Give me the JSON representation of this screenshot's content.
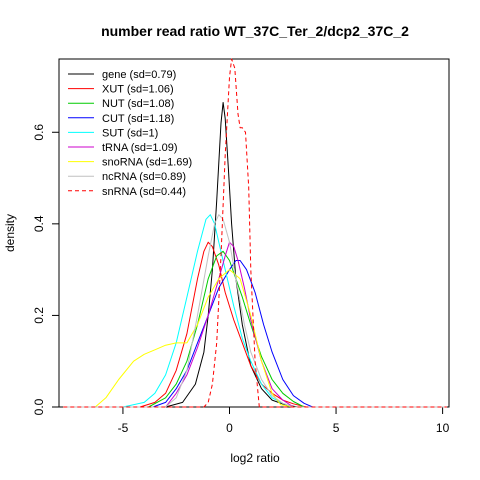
{
  "chart_data": {
    "type": "line",
    "title": "number read ratio WT_37C_Ter_2/dcp2_37C_2",
    "xlabel": "log2 ratio",
    "ylabel": "density",
    "xlim": [
      -8,
      10.3
    ],
    "ylim": [
      0,
      0.76
    ],
    "xticks": [
      -5,
      0,
      5,
      10
    ],
    "yticks": [
      0.0,
      0.2,
      0.4,
      0.6
    ],
    "grid": false,
    "legend_position": "top-left",
    "series": [
      {
        "name": "gene (sd=0.79)",
        "color": "#000000",
        "dash": "solid",
        "x": [
          -7.8,
          -3.0,
          -2.2,
          -1.6,
          -1.2,
          -1.0,
          -0.8,
          -0.6,
          -0.4,
          -0.3,
          -0.2,
          -0.05,
          0.1,
          0.3,
          0.6,
          1.0,
          1.5,
          2.0,
          2.6,
          3.2,
          10.2
        ],
        "y": [
          0,
          0,
          0.01,
          0.05,
          0.12,
          0.2,
          0.3,
          0.45,
          0.62,
          0.665,
          0.63,
          0.52,
          0.4,
          0.28,
          0.18,
          0.09,
          0.04,
          0.015,
          0.005,
          0,
          0
        ]
      },
      {
        "name": "XUT (sd=1.06)",
        "color": "#ff0000",
        "dash": "solid",
        "x": [
          -7.8,
          -4.2,
          -3.5,
          -3.0,
          -2.5,
          -2.0,
          -1.5,
          -1.2,
          -1.0,
          -0.8,
          -0.5,
          -0.2,
          0.2,
          0.6,
          1.0,
          1.5,
          2.0,
          2.5,
          3.0,
          3.6,
          10.2
        ],
        "y": [
          0,
          0,
          0.01,
          0.03,
          0.08,
          0.16,
          0.28,
          0.34,
          0.36,
          0.35,
          0.31,
          0.25,
          0.19,
          0.14,
          0.09,
          0.05,
          0.03,
          0.015,
          0.007,
          0,
          0
        ]
      },
      {
        "name": "NUT (sd=1.08)",
        "color": "#00cc00",
        "dash": "solid",
        "x": [
          -7.8,
          -3.8,
          -3.0,
          -2.5,
          -2.0,
          -1.5,
          -1.0,
          -0.6,
          -0.3,
          0.0,
          0.3,
          0.6,
          1.0,
          1.5,
          2.0,
          2.5,
          3.0,
          3.5,
          10.2
        ],
        "y": [
          0,
          0,
          0.02,
          0.05,
          0.1,
          0.18,
          0.28,
          0.33,
          0.34,
          0.32,
          0.28,
          0.24,
          0.18,
          0.11,
          0.06,
          0.03,
          0.012,
          0,
          0
        ]
      },
      {
        "name": "CUT (sd=1.18)",
        "color": "#0000ff",
        "dash": "solid",
        "x": [
          -7.8,
          -3.6,
          -3.0,
          -2.5,
          -2.0,
          -1.5,
          -1.0,
          -0.5,
          0.0,
          0.3,
          0.5,
          0.8,
          1.2,
          1.6,
          2.0,
          2.5,
          3.0,
          3.5,
          3.9,
          10.2
        ],
        "y": [
          0,
          0,
          0.01,
          0.04,
          0.08,
          0.14,
          0.2,
          0.26,
          0.3,
          0.32,
          0.32,
          0.3,
          0.25,
          0.18,
          0.12,
          0.06,
          0.025,
          0.008,
          0,
          0
        ]
      },
      {
        "name": "SUT (sd=1)",
        "color": "#00ffff",
        "dash": "solid",
        "x": [
          -7.8,
          -5.0,
          -4.0,
          -3.5,
          -3.0,
          -2.5,
          -2.0,
          -1.5,
          -1.1,
          -0.9,
          -0.7,
          -0.5,
          -0.2,
          0.2,
          0.6,
          1.0,
          1.5,
          2.0,
          2.5,
          3.0,
          10.2
        ],
        "y": [
          0,
          0,
          0.01,
          0.03,
          0.07,
          0.14,
          0.24,
          0.34,
          0.41,
          0.42,
          0.4,
          0.36,
          0.3,
          0.22,
          0.15,
          0.1,
          0.05,
          0.02,
          0.008,
          0,
          0
        ]
      },
      {
        "name": "tRNA (sd=1.09)",
        "color": "#cc00cc",
        "dash": "solid",
        "x": [
          -7.8,
          -3.0,
          -2.5,
          -2.0,
          -1.5,
          -1.0,
          -0.5,
          -0.2,
          0.0,
          0.2,
          0.4,
          0.7,
          1.0,
          1.5,
          2.0,
          2.5,
          3.0,
          10.2
        ],
        "y": [
          0,
          0,
          0.03,
          0.07,
          0.13,
          0.2,
          0.28,
          0.33,
          0.36,
          0.35,
          0.32,
          0.26,
          0.19,
          0.1,
          0.04,
          0.015,
          0,
          0
        ]
      },
      {
        "name": "snoRNA (sd=1.69)",
        "color": "#ffff00",
        "dash": "solid",
        "x": [
          -7.8,
          -6.3,
          -5.8,
          -5.2,
          -4.5,
          -4.0,
          -3.5,
          -3.0,
          -2.5,
          -2.2,
          -2.0,
          -1.5,
          -1.0,
          -0.5,
          0.0,
          0.5,
          1.0,
          1.5,
          2.0,
          2.4,
          3.0,
          10.2
        ],
        "y": [
          0,
          0,
          0.02,
          0.06,
          0.1,
          0.115,
          0.125,
          0.135,
          0.14,
          0.14,
          0.14,
          0.18,
          0.24,
          0.28,
          0.3,
          0.28,
          0.2,
          0.1,
          0.03,
          0.005,
          0,
          0
        ]
      },
      {
        "name": "ncRNA (sd=0.89)",
        "color": "#c0c0c0",
        "dash": "solid",
        "x": [
          -7.8,
          -3.0,
          -2.5,
          -2.0,
          -1.5,
          -1.0,
          -0.7,
          -0.5,
          -0.3,
          0.0,
          0.3,
          0.7,
          1.0,
          1.5,
          2.0,
          2.5,
          3.0,
          10.2
        ],
        "y": [
          0,
          0,
          0.02,
          0.08,
          0.2,
          0.33,
          0.4,
          0.42,
          0.41,
          0.36,
          0.28,
          0.18,
          0.12,
          0.06,
          0.025,
          0.008,
          0,
          0
        ]
      },
      {
        "name": "snRNA (sd=0.44)",
        "color": "#ff0000",
        "dash": "dashed",
        "x": [
          -7.8,
          -1.2,
          -1.0,
          -0.8,
          -0.6,
          -0.4,
          -0.2,
          0.0,
          0.1,
          0.25,
          0.4,
          0.5,
          0.6,
          0.75,
          0.9,
          1.0,
          1.2,
          1.4,
          10.2
        ],
        "y": [
          0,
          0,
          0.01,
          0.05,
          0.14,
          0.33,
          0.55,
          0.72,
          0.76,
          0.74,
          0.64,
          0.61,
          0.61,
          0.6,
          0.48,
          0.3,
          0.1,
          0,
          0
        ]
      }
    ]
  }
}
